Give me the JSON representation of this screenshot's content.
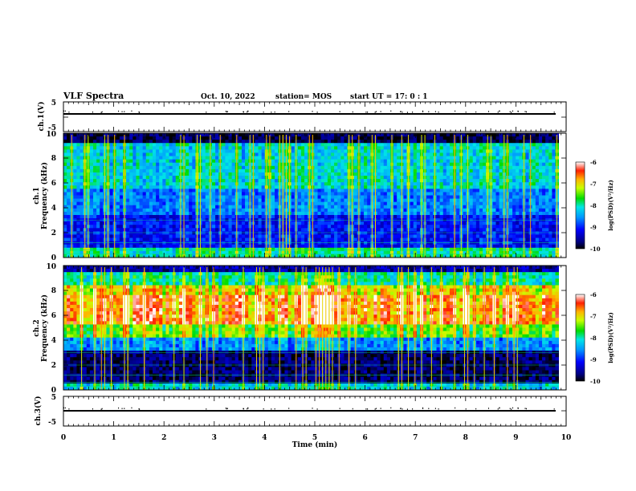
{
  "header": {
    "title": "VLF Spectra",
    "date": "Oct. 10, 2022",
    "station": "station= MOS",
    "start": "start  UT =   17: 0  : 1"
  },
  "chart_data": {
    "type": "heatmap",
    "x_axis": {
      "label": "Time  (min)",
      "range": [
        0,
        10
      ],
      "ticks": [
        "0",
        "1",
        "2",
        "3",
        "4",
        "5",
        "6",
        "7",
        "8",
        "9",
        "10"
      ]
    },
    "panels": [
      {
        "id": "ch1-voltage",
        "ylabel": "ch.1(V)",
        "ylim": [
          -5,
          5
        ],
        "ticks": [
          "5",
          "-5"
        ],
        "trace_level": 0
      },
      {
        "id": "ch1-spectrogram",
        "ylabel": "ch.1\nFrequency (kHz)",
        "ylim": [
          0,
          10
        ],
        "ticks": [
          "0",
          "2",
          "4",
          "6",
          "8",
          "10"
        ],
        "data_end_min": 9.85
      },
      {
        "id": "ch2-spectrogram",
        "ylabel": "ch.2\nFrequency (kHz)",
        "ylim": [
          0,
          10
        ],
        "ticks": [
          "0",
          "2",
          "4",
          "6",
          "8",
          "10"
        ],
        "data_end_min": 9.85
      },
      {
        "id": "ch3-voltage",
        "ylabel": "ch.3(V)",
        "ylim": [
          -5,
          5
        ],
        "ticks": [
          "5",
          "-5"
        ],
        "trace_level": 0
      }
    ],
    "colorbar": {
      "label": "log(PSD)(V²/Hz)",
      "range": [
        -10,
        -6
      ],
      "ticks": [
        "-6",
        "-7",
        "-8",
        "-9",
        "-10"
      ]
    }
  }
}
